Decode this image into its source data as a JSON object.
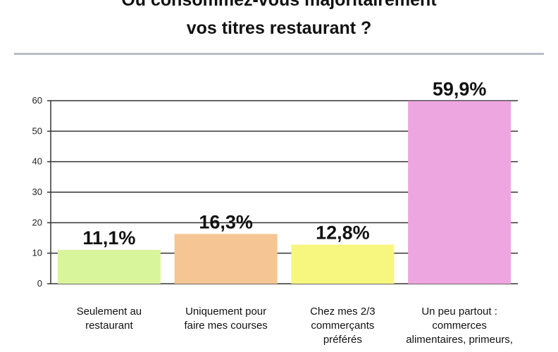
{
  "title_line1": "Où consommez-vous majoritairement",
  "title_line2": "vos titres restaurant ?",
  "chart_data": {
    "type": "bar",
    "categories": [
      [
        "Seulement au",
        "restaurant"
      ],
      [
        "Uniquement pour",
        "faire mes courses"
      ],
      [
        "Chez mes 2/3",
        "commerçants",
        "préférés"
      ],
      [
        "Un peu partout :",
        "commerces",
        "alimentaires, primeurs,"
      ]
    ],
    "values": [
      11.1,
      16.3,
      12.8,
      59.9
    ],
    "data_labels": [
      "11,1%",
      "16,3%",
      "12,8%",
      "59,9%"
    ],
    "colors": [
      "#d9f59c",
      "#f5c593",
      "#f7f67e",
      "#eea6e0"
    ],
    "yticks": [
      0,
      10,
      20,
      30,
      40,
      50,
      60
    ],
    "ylim": [
      0,
      60
    ],
    "grid": true
  }
}
